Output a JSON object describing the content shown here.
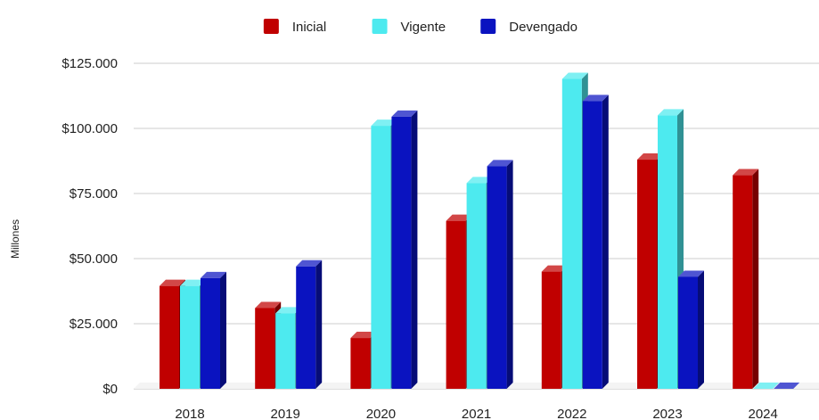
{
  "chart_data": {
    "type": "bar",
    "title": "",
    "xlabel": "",
    "ylabel": "Millones",
    "categories": [
      "2018",
      "2019",
      "2020",
      "2021",
      "2022",
      "2023",
      "2024"
    ],
    "series": [
      {
        "name": "Inicial",
        "color": "#c00000",
        "values": [
          39500,
          31000,
          19500,
          64500,
          45000,
          88000,
          82000
        ]
      },
      {
        "name": "Vigente",
        "color": "#4deaef",
        "values": [
          39500,
          29000,
          101000,
          79000,
          119000,
          105000,
          0
        ]
      },
      {
        "name": "Devengado",
        "color": "#0a13c0",
        "values": [
          42500,
          47000,
          104500,
          85500,
          110500,
          43000,
          0
        ]
      }
    ],
    "ylim": [
      0,
      125000
    ],
    "yticks": [
      0,
      25000,
      50000,
      75000,
      100000,
      125000
    ],
    "ytick_labels": [
      "$0",
      "$25.000",
      "$50.000",
      "$75.000",
      "$100.000",
      "$125.000"
    ],
    "grid": true,
    "legend_position": "top-center",
    "style": "3d-bar"
  }
}
